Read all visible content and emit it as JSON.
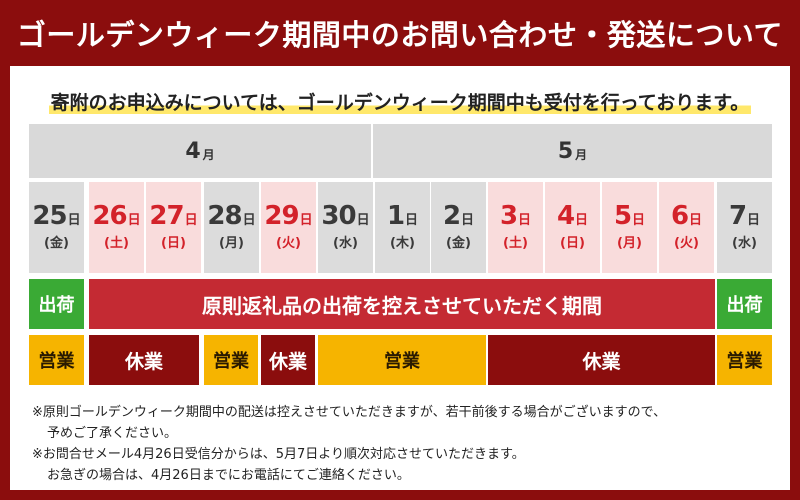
{
  "header": {
    "title": "ゴールデンウィーク期間中のお問い合わせ・発送について",
    "subtitle": "寄附のお申込みについては、ゴールデンウィーク期間中も受付を行っております。"
  },
  "colors": {
    "header_bg": "#8b0d0d",
    "weekday_bg": "#dcdcdc",
    "holiday_bg": "#f9dcdc",
    "holiday_text": "#d3222a",
    "ship_bg": "#3aaa35",
    "block_bg": "#c42a33",
    "open_bg": "#f6b400",
    "closed_bg": "#8b0d0d"
  },
  "months": [
    {
      "num": "4",
      "unit": "月"
    },
    {
      "num": "5",
      "unit": "月"
    }
  ],
  "day_suffix": "日",
  "days": [
    {
      "num": "25",
      "dow": "(金)",
      "holiday": false
    },
    {
      "num": "26",
      "dow": "(土)",
      "holiday": true
    },
    {
      "num": "27",
      "dow": "(日)",
      "holiday": true
    },
    {
      "num": "28",
      "dow": "(月)",
      "holiday": false
    },
    {
      "num": "29",
      "dow": "(火)",
      "holiday": true
    },
    {
      "num": "30",
      "dow": "(水)",
      "holiday": false
    },
    {
      "num": "1",
      "dow": "(木)",
      "holiday": false
    },
    {
      "num": "2",
      "dow": "(金)",
      "holiday": false
    },
    {
      "num": "3",
      "dow": "(土)",
      "holiday": true
    },
    {
      "num": "4",
      "dow": "(日)",
      "holiday": true
    },
    {
      "num": "5",
      "dow": "(月)",
      "holiday": true
    },
    {
      "num": "6",
      "dow": "(火)",
      "holiday": true
    },
    {
      "num": "7",
      "dow": "(水)",
      "holiday": false
    }
  ],
  "shipping": {
    "ship_label": "出荷",
    "block_label": "原則返礼品の出荷を控えさせていただく期間"
  },
  "business": {
    "open_label": "営業",
    "closed_label": "休業"
  },
  "notes": [
    "※原則ゴールデンウィーク期間中の配送は控えさせていただきますが、若干前後する場合がございますので、",
    "予めご了承ください。",
    "※お問合せメール4月26日受信分からは、5月7日より順次対応させていただきます。",
    "お急ぎの場合は、4月26日までにお電話にてご連絡ください。"
  ]
}
